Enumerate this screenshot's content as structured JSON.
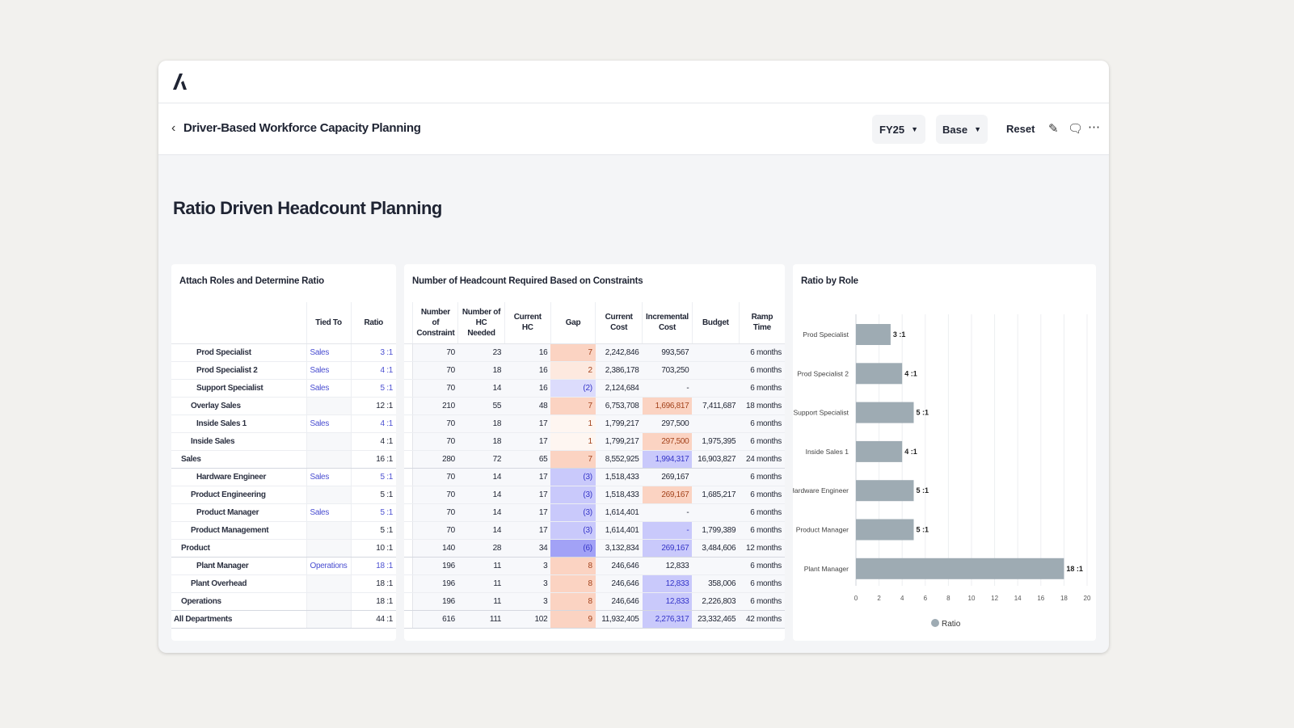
{
  "header": {
    "title": "Driver-Based Workforce Capacity Planning",
    "period": "FY25",
    "scenario": "Base",
    "reset_label": "Reset"
  },
  "page_title": "Ratio Driven Headcount Planning",
  "roles_panel": {
    "title": "Attach Roles and Determine Ratio",
    "columns": [
      "",
      "Tied To",
      "Ratio"
    ],
    "rows": [
      {
        "name": "Prod Specialist",
        "level": 3,
        "tied_to": "Sales",
        "ratio": "3 :1"
      },
      {
        "name": "Prod Specialist 2",
        "level": 3,
        "tied_to": "Sales",
        "ratio": "4 :1"
      },
      {
        "name": "Support Specialist",
        "level": 3,
        "tied_to": "Sales",
        "ratio": "5 :1"
      },
      {
        "name": "Overlay Sales",
        "level": 2,
        "tied_to": "",
        "ratio": "12 :1"
      },
      {
        "name": "Inside Sales 1",
        "level": 3,
        "tied_to": "Sales",
        "ratio": "4 :1"
      },
      {
        "name": "Inside Sales",
        "level": 2,
        "tied_to": "",
        "ratio": "4 :1"
      },
      {
        "name": "Sales",
        "level": 1,
        "tied_to": "",
        "ratio": "16 :1"
      },
      {
        "name": "Hardware Engineer",
        "level": 3,
        "tied_to": "Sales",
        "ratio": "5 :1"
      },
      {
        "name": "Product Engineering",
        "level": 2,
        "tied_to": "",
        "ratio": "5 :1"
      },
      {
        "name": "Product Manager",
        "level": 3,
        "tied_to": "Sales",
        "ratio": "5 :1"
      },
      {
        "name": "Product Management",
        "level": 2,
        "tied_to": "",
        "ratio": "5 :1"
      },
      {
        "name": "Product",
        "level": 1,
        "tied_to": "",
        "ratio": "10 :1"
      },
      {
        "name": "Plant Manager",
        "level": 3,
        "tied_to": "Operations",
        "ratio": "18 :1"
      },
      {
        "name": "Plant Overhead",
        "level": 2,
        "tied_to": "",
        "ratio": "18 :1"
      },
      {
        "name": "Operations",
        "level": 1,
        "tied_to": "",
        "ratio": "18 :1"
      },
      {
        "name": "All Departments",
        "level": 0,
        "tied_to": "",
        "ratio": "44 :1"
      }
    ]
  },
  "hc_panel": {
    "title": "Number of Headcount Required Based on Constraints",
    "columns": [
      "Number of Constraint",
      "Number of HC Needed",
      "Current HC",
      "Gap",
      "Current Cost",
      "Incremental Cost",
      "Budget",
      "Ramp Time"
    ],
    "rows": [
      {
        "constraint": "70",
        "needed": "23",
        "current_hc": "16",
        "gap": "7",
        "gap_tone": "orange",
        "current_cost": "2,242,846",
        "incr": "993,567",
        "incr_tone": "",
        "budget": "",
        "ramp": "6 months"
      },
      {
        "constraint": "70",
        "needed": "18",
        "current_hc": "16",
        "gap": "2",
        "gap_tone": "light-orange",
        "current_cost": "2,386,178",
        "incr": "703,250",
        "incr_tone": "",
        "budget": "",
        "ramp": "6 months"
      },
      {
        "constraint": "70",
        "needed": "14",
        "current_hc": "16",
        "gap": "(2)",
        "gap_tone": "light-blue",
        "current_cost": "2,124,684",
        "incr": "-",
        "incr_tone": "",
        "budget": "",
        "ramp": "6 months"
      },
      {
        "constraint": "210",
        "needed": "55",
        "current_hc": "48",
        "gap": "7",
        "gap_tone": "orange",
        "current_cost": "6,753,708",
        "incr": "1,696,817",
        "incr_tone": "orange",
        "budget": "7,411,687",
        "ramp": "18 months"
      },
      {
        "constraint": "70",
        "needed": "18",
        "current_hc": "17",
        "gap": "1",
        "gap_tone": "faint-orange",
        "current_cost": "1,799,217",
        "incr": "297,500",
        "incr_tone": "",
        "budget": "",
        "ramp": "6 months"
      },
      {
        "constraint": "70",
        "needed": "18",
        "current_hc": "17",
        "gap": "1",
        "gap_tone": "faint-orange",
        "current_cost": "1,799,217",
        "incr": "297,500",
        "incr_tone": "orange",
        "budget": "1,975,395",
        "ramp": "6 months"
      },
      {
        "constraint": "280",
        "needed": "72",
        "current_hc": "65",
        "gap": "7",
        "gap_tone": "orange",
        "current_cost": "8,552,925",
        "incr": "1,994,317",
        "incr_tone": "blue",
        "budget": "16,903,827",
        "ramp": "24 months"
      },
      {
        "constraint": "70",
        "needed": "14",
        "current_hc": "17",
        "gap": "(3)",
        "gap_tone": "blue",
        "current_cost": "1,518,433",
        "incr": "269,167",
        "incr_tone": "",
        "budget": "",
        "ramp": "6 months"
      },
      {
        "constraint": "70",
        "needed": "14",
        "current_hc": "17",
        "gap": "(3)",
        "gap_tone": "blue",
        "current_cost": "1,518,433",
        "incr": "269,167",
        "incr_tone": "orange",
        "budget": "1,685,217",
        "ramp": "6 months"
      },
      {
        "constraint": "70",
        "needed": "14",
        "current_hc": "17",
        "gap": "(3)",
        "gap_tone": "blue",
        "current_cost": "1,614,401",
        "incr": "-",
        "incr_tone": "",
        "budget": "",
        "ramp": "6 months"
      },
      {
        "constraint": "70",
        "needed": "14",
        "current_hc": "17",
        "gap": "(3)",
        "gap_tone": "blue",
        "current_cost": "1,614,401",
        "incr": "-",
        "incr_tone": "blue",
        "budget": "1,799,389",
        "ramp": "6 months"
      },
      {
        "constraint": "140",
        "needed": "28",
        "current_hc": "34",
        "gap": "(6)",
        "gap_tone": "dark-blue",
        "current_cost": "3,132,834",
        "incr": "269,167",
        "incr_tone": "blue",
        "budget": "3,484,606",
        "ramp": "12 months"
      },
      {
        "constraint": "196",
        "needed": "11",
        "current_hc": "3",
        "gap": "8",
        "gap_tone": "orange",
        "current_cost": "246,646",
        "incr": "12,833",
        "incr_tone": "",
        "budget": "",
        "ramp": "6 months"
      },
      {
        "constraint": "196",
        "needed": "11",
        "current_hc": "3",
        "gap": "8",
        "gap_tone": "orange",
        "current_cost": "246,646",
        "incr": "12,833",
        "incr_tone": "blue",
        "budget": "358,006",
        "ramp": "6 months"
      },
      {
        "constraint": "196",
        "needed": "11",
        "current_hc": "3",
        "gap": "8",
        "gap_tone": "orange",
        "current_cost": "246,646",
        "incr": "12,833",
        "incr_tone": "blue",
        "budget": "2,226,803",
        "ramp": "6 months"
      },
      {
        "constraint": "616",
        "needed": "111",
        "current_hc": "102",
        "gap": "9",
        "gap_tone": "orange",
        "current_cost": "11,932,405",
        "incr": "2,276,317",
        "incr_tone": "blue",
        "budget": "23,332,465",
        "ramp": "42 months"
      }
    ]
  },
  "colors": {
    "orange": "#fbd3c2",
    "light-orange": "#fde9df",
    "faint-orange": "#fef6f1",
    "light-blue": "#dcdcfc",
    "blue": "#c9c9fb",
    "dark-blue": "#a2a2f6",
    "orange_text": "#a3421b",
    "blue_text": "#3535c8",
    "bar": "#9eabb3"
  },
  "chart_data": {
    "type": "bar",
    "orientation": "horizontal",
    "title": "Ratio by Role",
    "categories": [
      "Prod Specialist",
      "Prod Specialist 2",
      "Support Specialist",
      "Inside Sales 1",
      "Hardware Engineer",
      "Product Manager",
      "Plant Manager"
    ],
    "series": [
      {
        "name": "Ratio",
        "values": [
          3,
          4,
          5,
          4,
          5,
          5,
          18
        ],
        "labels": [
          "3 :1",
          "4 :1",
          "5 :1",
          "4 :1",
          "5 :1",
          "5 :1",
          "18 :1"
        ]
      }
    ],
    "xlim": [
      0,
      20
    ],
    "xticks": [
      "0",
      "2",
      "4",
      "6",
      "8",
      "10",
      "12",
      "14",
      "16",
      "18",
      "20"
    ],
    "grid": true,
    "legend": "bottom"
  }
}
